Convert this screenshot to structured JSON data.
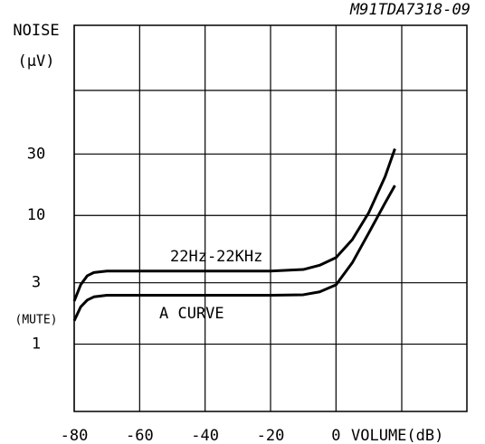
{
  "chart_data": {
    "type": "line",
    "title": "NOISE",
    "y_unit": "(µV)",
    "x_label": "VOLUME(dB)",
    "code": "M91TDA7318-09",
    "mute_label": "(MUTE)",
    "log_y": true,
    "grid": true,
    "xlim": [
      -80,
      40
    ],
    "ylim": [
      0.3,
      300
    ],
    "xticks": [
      -80,
      -60,
      -40,
      -20,
      0
    ],
    "yticks": [
      1,
      3,
      10,
      30
    ],
    "series": [
      {
        "name": "22Hz-22KHz",
        "color": "#000000",
        "x": [
          -80,
          -78,
          -76,
          -74,
          -70,
          -60,
          -40,
          -20,
          -10,
          -5,
          0,
          5,
          10,
          15,
          18
        ],
        "values": [
          2.16,
          2.9,
          3.4,
          3.6,
          3.7,
          3.7,
          3.7,
          3.7,
          3.8,
          4.1,
          4.7,
          6.5,
          10.5,
          20,
          33
        ]
      },
      {
        "name": "A CURVE",
        "color": "#000000",
        "x": [
          -80,
          -78,
          -76,
          -74,
          -70,
          -60,
          -40,
          -20,
          -10,
          -5,
          0,
          5,
          10,
          15,
          18
        ],
        "values": [
          1.52,
          1.95,
          2.2,
          2.33,
          2.4,
          2.4,
          2.4,
          2.4,
          2.42,
          2.55,
          2.89,
          4.3,
          7.3,
          12.5,
          17.1
        ]
      }
    ]
  }
}
